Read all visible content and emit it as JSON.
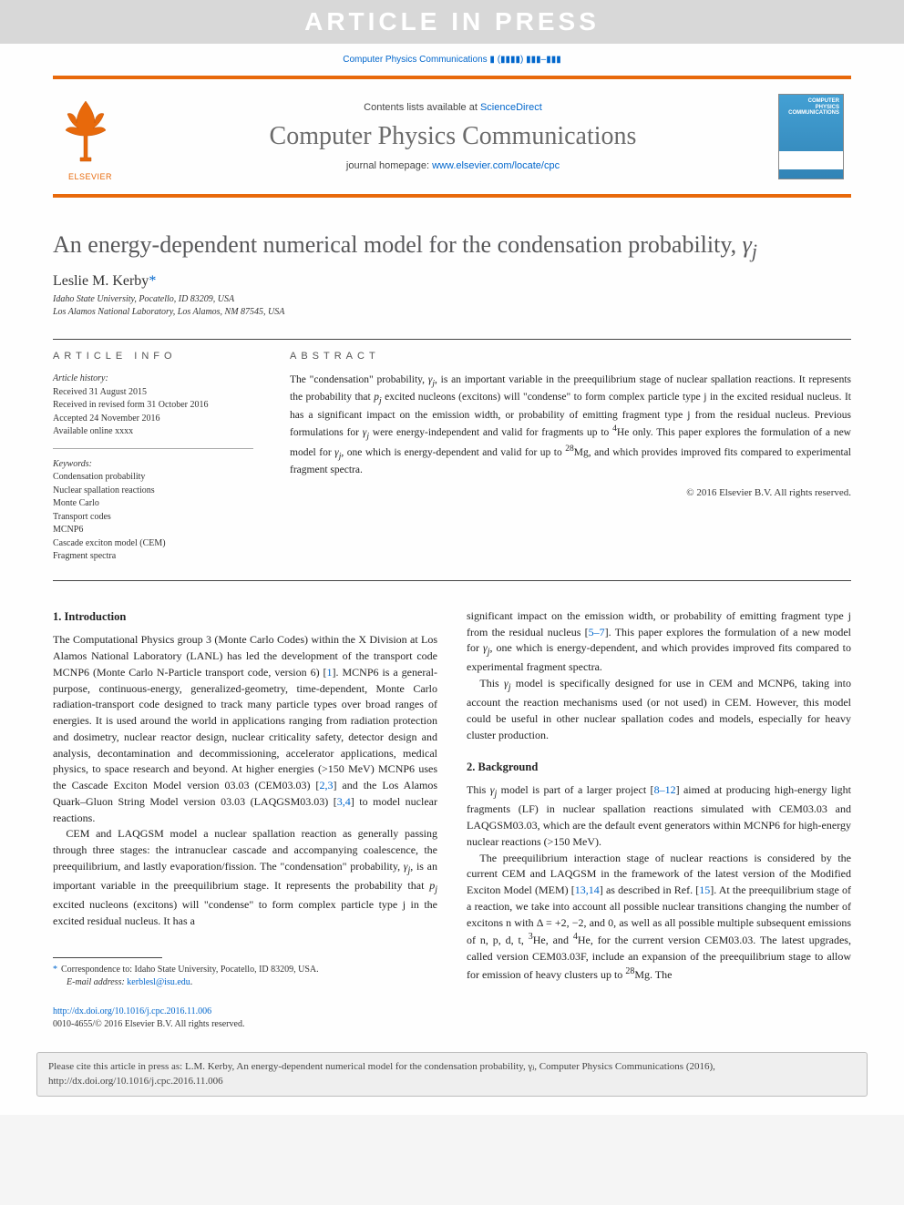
{
  "watermark": "ARTICLE IN PRESS",
  "journal_ref_top": "Computer Physics Communications ▮ (▮▮▮▮) ▮▮▮–▮▮▮",
  "masthead": {
    "contents_prefix": "Contents lists available at ",
    "contents_link": "ScienceDirect",
    "journal_title": "Computer Physics Communications",
    "homepage_prefix": "journal homepage: ",
    "homepage_link": "www.elsevier.com/locate/cpc",
    "publisher_label": "ELSEVIER",
    "cover_title": "COMPUTER PHYSICS COMMUNICATIONS"
  },
  "article": {
    "title_pre": "An energy-dependent numerical model for the condensation probability, ",
    "title_symbol": "γⱼ",
    "author": "Leslie M. Kerby",
    "asterisk": "*",
    "affiliations": [
      "Idaho State University, Pocatello, ID 83209, USA",
      "Los Alamos National Laboratory, Los Alamos, NM 87545, USA"
    ]
  },
  "info_heading": "ARTICLE INFO",
  "abstract_heading": "ABSTRACT",
  "history": {
    "label": "Article history:",
    "received": "Received 31 August 2015",
    "revised": "Received in revised form 31 October 2016",
    "accepted": "Accepted 24 November 2016",
    "online": "Available online xxxx"
  },
  "keywords": {
    "label": "Keywords:",
    "items": [
      "Condensation probability",
      "Nuclear spallation reactions",
      "Monte Carlo",
      "Transport codes",
      "MCNP6",
      "Cascade exciton model (CEM)",
      "Fragment spectra"
    ]
  },
  "abstract": "The \"condensation\" probability, γⱼ, is an important variable in the preequilibrium stage of nuclear spallation reactions. It represents the probability that pⱼ excited nucleons (excitons) will \"condense\" to form complex particle type j in the excited residual nucleus. It has a significant impact on the emission width, or probability of emitting fragment type j from the residual nucleus. Previous formulations for γⱼ were energy-independent and valid for fragments up to ⁴He only. This paper explores the formulation of a new model for γⱼ, one which is energy-dependent and valid for up to ²⁸Mg, and which provides improved fits compared to experimental fragment spectra.",
  "copyright": "© 2016 Elsevier B.V. All rights reserved.",
  "sections": {
    "intro_heading": "1. Introduction",
    "bg_heading": "2. Background",
    "col1_p1": "The Computational Physics group 3 (Monte Carlo Codes) within the X Division at Los Alamos National Laboratory (LANL) has led the development of the transport code MCNP6 (Monte Carlo N-Particle transport code, version 6) [1]. MCNP6 is a general-purpose, continuous-energy, generalized-geometry, time-dependent, Monte Carlo radiation-transport code designed to track many particle types over broad ranges of energies. It is used around the world in applications ranging from radiation protection and dosimetry, nuclear reactor design, nuclear criticality safety, detector design and analysis, decontamination and decommissioning, accelerator applications, medical physics, to space research and beyond. At higher energies (>150 MeV) MCNP6 uses the Cascade Exciton Model version 03.03 (CEM03.03) [2,3] and the Los Alamos Quark–Gluon String Model version 03.03 (LAQGSM03.03) [3,4] to model nuclear reactions.",
    "col1_p2": "CEM and LAQGSM model a nuclear spallation reaction as generally passing through three stages: the intranuclear cascade and accompanying coalescence, the preequilibrium, and lastly evaporation/fission. The \"condensation\" probability, γⱼ, is an important variable in the preequilibrium stage. It represents the probability that pⱼ excited nucleons (excitons) will \"condense\" to form complex particle type j in the excited residual nucleus. It has a",
    "col2_p1": "significant impact on the emission width, or probability of emitting fragment type j from the residual nucleus [5–7]. This paper explores the formulation of a new model for γⱼ, one which is energy-dependent, and which provides improved fits compared to experimental fragment spectra.",
    "col2_p2": "This γⱼ model is specifically designed for use in CEM and MCNP6, taking into account the reaction mechanisms used (or not used) in CEM. However, this model could be useful in other nuclear spallation codes and models, especially for heavy cluster production.",
    "col2_p3": "This γⱼ model is part of a larger project [8–12] aimed at producing high-energy light fragments (LF) in nuclear spallation reactions simulated with CEM03.03 and LAQGSM03.03, which are the default event generators within MCNP6 for high-energy nuclear reactions (>150 MeV).",
    "col2_p4": "The preequilibrium interaction stage of nuclear reactions is considered by the current CEM and LAQGSM in the framework of the latest version of the Modified Exciton Model (MEM) [13,14] as described in Ref. [15]. At the preequilibrium stage of a reaction, we take into account all possible nuclear transitions changing the number of excitons n with Δ = +2, −2, and 0, as well as all possible multiple subsequent emissions of n, p, d, t, ³He, and ⁴He, for the current version CEM03.03. The latest upgrades, called version CEM03.03F, include an expansion of the preequilibrium stage to allow for emission of heavy clusters up to ²⁸Mg. The"
  },
  "footnote": {
    "corr": "Correspondence to: Idaho State University, Pocatello, ID 83209, USA.",
    "email_label": "E-mail address: ",
    "email": "kerblesl@isu.edu"
  },
  "footer": {
    "doi": "http://dx.doi.org/10.1016/j.cpc.2016.11.006",
    "issn_line": "0010-4655/© 2016 Elsevier B.V. All rights reserved."
  },
  "cite_box": "Please cite this article in press as: L.M. Kerby, An energy-dependent numerical model for the condensation probability, γⱼ, Computer Physics Communications (2016), http://dx.doi.org/10.1016/j.cpc.2016.11.006"
}
